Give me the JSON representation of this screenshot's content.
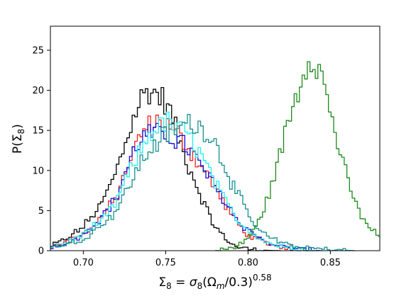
{
  "chart_data": {
    "type": "histogram",
    "xlabel_parts": {
      "lhs_base": "Σ",
      "lhs_sub": "8",
      "eq": " = ",
      "sigma": "σ",
      "sigma_sub": "8",
      "open": "(Ω",
      "omega_sub": "m",
      "close": "/0.3)",
      "exponent": "0.58"
    },
    "ylabel_parts": {
      "base": "P(Σ",
      "sub": "8",
      "close": ")"
    },
    "xlim": [
      0.68,
      0.88
    ],
    "ylim": [
      0,
      28
    ],
    "xticks": [
      0.7,
      0.75,
      0.8,
      0.85
    ],
    "yticks": [
      0,
      5,
      10,
      15,
      20,
      25
    ],
    "xtick_labels": [
      "0.70",
      "0.75",
      "0.80",
      "0.85"
    ],
    "ytick_labels": [
      "0",
      "5",
      "10",
      "15",
      "20",
      "25"
    ],
    "grid": false,
    "legend": "none",
    "series": [
      {
        "color": "#000000",
        "x": [
          0.68,
          0.69,
          0.7,
          0.71,
          0.715,
          0.72,
          0.725,
          0.73,
          0.735,
          0.74,
          0.745,
          0.75,
          0.755,
          0.76,
          0.765,
          0.77,
          0.775,
          0.78,
          0.785,
          0.79,
          0.795,
          0.8,
          0.805,
          0.81,
          0.82
        ],
        "y": [
          0.5,
          1.5,
          3.0,
          5.5,
          7.5,
          10.0,
          13.0,
          16.5,
          19.0,
          20.0,
          19.5,
          18.5,
          16.0,
          12.5,
          10.0,
          7.5,
          5.0,
          3.0,
          1.8,
          0.8,
          0.4,
          0.2,
          0.1,
          0.05,
          0.0
        ]
      },
      {
        "color": "#ee2020",
        "x": [
          0.68,
          0.69,
          0.7,
          0.71,
          0.72,
          0.725,
          0.73,
          0.735,
          0.74,
          0.745,
          0.75,
          0.755,
          0.76,
          0.765,
          0.77,
          0.775,
          0.78,
          0.785,
          0.79,
          0.795,
          0.8,
          0.81,
          0.82,
          0.83,
          0.84
        ],
        "y": [
          0.5,
          1.0,
          2.0,
          4.0,
          6.5,
          9.5,
          12.0,
          14.5,
          15.5,
          16.0,
          16.0,
          15.0,
          14.0,
          12.5,
          11.0,
          9.5,
          8.0,
          6.0,
          4.5,
          3.0,
          2.0,
          1.0,
          0.5,
          0.2,
          0.0
        ]
      },
      {
        "color": "#1010dd",
        "x": [
          0.68,
          0.69,
          0.7,
          0.71,
          0.72,
          0.725,
          0.73,
          0.735,
          0.74,
          0.745,
          0.75,
          0.755,
          0.76,
          0.765,
          0.77,
          0.775,
          0.78,
          0.785,
          0.79,
          0.795,
          0.8,
          0.81,
          0.82,
          0.83,
          0.845
        ],
        "y": [
          0.5,
          1.0,
          2.0,
          4.0,
          6.5,
          9.5,
          12.0,
          14.0,
          14.5,
          14.5,
          14.5,
          14.0,
          13.5,
          12.5,
          11.0,
          9.5,
          8.0,
          6.5,
          5.0,
          3.5,
          2.5,
          1.2,
          0.5,
          0.2,
          0.0
        ]
      },
      {
        "color": "#22eeee",
        "x": [
          0.68,
          0.69,
          0.7,
          0.71,
          0.72,
          0.725,
          0.73,
          0.735,
          0.74,
          0.745,
          0.75,
          0.755,
          0.76,
          0.765,
          0.77,
          0.775,
          0.78,
          0.785,
          0.79,
          0.795,
          0.8,
          0.81,
          0.82,
          0.83,
          0.84
        ],
        "y": [
          0.5,
          1.0,
          2.0,
          3.5,
          6.0,
          8.5,
          10.5,
          12.5,
          14.5,
          15.5,
          16.0,
          15.5,
          15.0,
          14.0,
          12.5,
          10.5,
          8.5,
          6.5,
          5.0,
          3.5,
          2.5,
          1.2,
          0.5,
          0.2,
          0.0
        ]
      },
      {
        "color": "#16908f",
        "x": [
          0.68,
          0.69,
          0.7,
          0.71,
          0.72,
          0.725,
          0.73,
          0.735,
          0.74,
          0.745,
          0.75,
          0.755,
          0.76,
          0.765,
          0.77,
          0.775,
          0.78,
          0.785,
          0.79,
          0.795,
          0.8,
          0.805,
          0.81,
          0.82,
          0.83,
          0.845,
          0.865
        ],
        "y": [
          0.5,
          0.8,
          1.5,
          3.0,
          5.0,
          7.0,
          9.0,
          11.0,
          12.5,
          13.5,
          14.5,
          15.0,
          15.5,
          16.0,
          15.5,
          15.0,
          13.5,
          11.0,
          8.5,
          6.5,
          4.5,
          3.0,
          2.0,
          1.0,
          0.4,
          0.2,
          0.0
        ]
      },
      {
        "color": "#1a8a1a",
        "x": [
          0.78,
          0.79,
          0.795,
          0.8,
          0.805,
          0.81,
          0.815,
          0.82,
          0.825,
          0.83,
          0.835,
          0.838,
          0.84,
          0.845,
          0.85,
          0.855,
          0.86,
          0.865,
          0.87,
          0.875,
          0.88
        ],
        "y": [
          0.0,
          0.3,
          0.8,
          1.5,
          3.0,
          5.5,
          8.5,
          12.5,
          16.5,
          20.0,
          23.0,
          24.5,
          24.5,
          21.5,
          17.5,
          13.0,
          9.0,
          6.0,
          4.0,
          2.5,
          2.0
        ]
      }
    ]
  }
}
